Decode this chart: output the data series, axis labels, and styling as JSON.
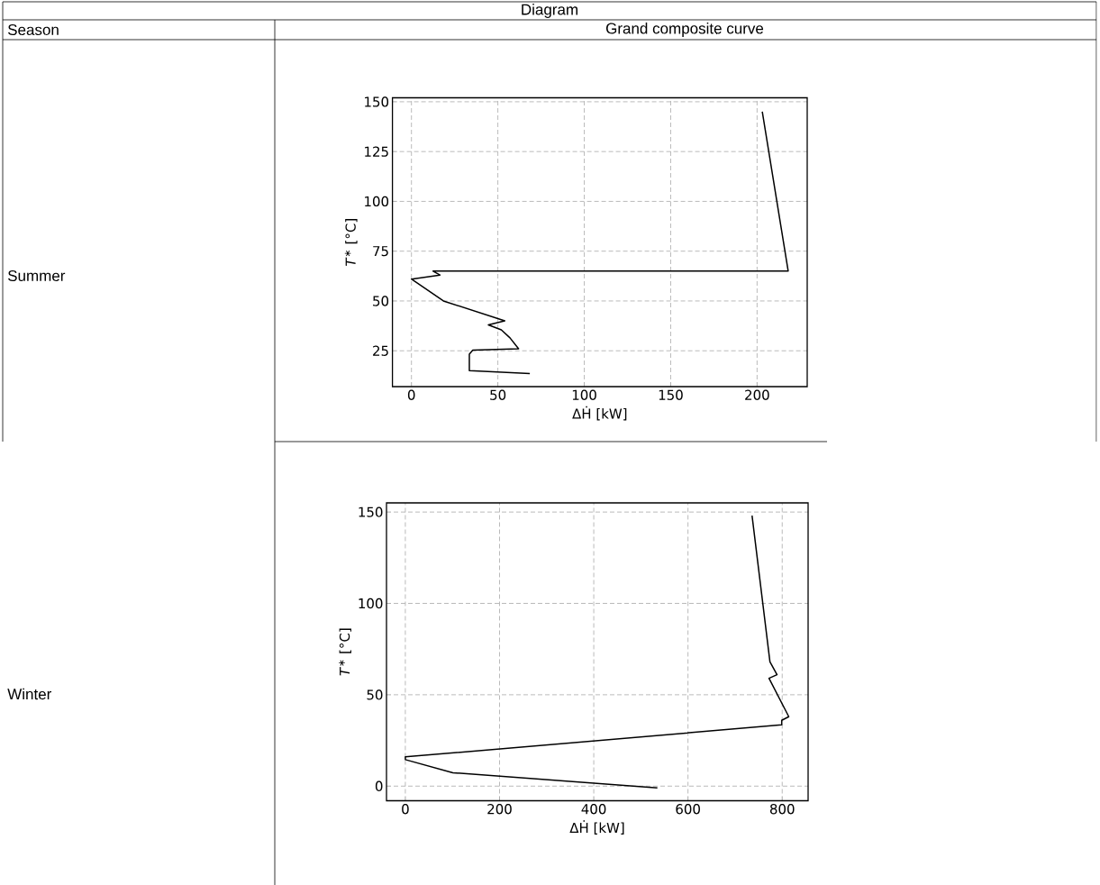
{
  "chart_data": [
    {
      "type": "line",
      "xlabel": "ΔḢ [kW]",
      "ylabel": "*T*$^{∗}$ [°C]",
      "annotations": [
        "Diagram",
        "Season",
        "Grand composite curve",
        "Summer"
      ],
      "xlim": [
        -11,
        229
      ],
      "ylim": [
        7,
        152
      ],
      "xticks": [
        0,
        50,
        100,
        150,
        200
      ],
      "yticks": [
        25,
        50,
        75,
        100,
        125,
        150
      ],
      "grid": true,
      "marker": "none",
      "line_style": "solid",
      "series": [
        {
          "color": "#000000",
          "x": [
            203,
            218,
            12.5,
            16.5,
            0,
            18.5,
            54,
            44.5,
            52,
            57,
            62,
            35.5,
            33.5,
            33.5,
            68.5
          ],
          "values": [
            145,
            65,
            65,
            63,
            61,
            50,
            40,
            38,
            35.5,
            31.5,
            26,
            25.3,
            23.3,
            15,
            13.6
          ]
        }
      ]
    },
    {
      "type": "line",
      "xlabel": "ΔḢ [kW]",
      "ylabel": "*T*$^{∗}$ [°C]",
      "annotations": [
        "Winter"
      ],
      "xlim": [
        -40,
        855
      ],
      "ylim": [
        -8,
        155
      ],
      "xticks": [
        0,
        200,
        400,
        600,
        800
      ],
      "yticks": [
        0,
        50,
        100,
        150
      ],
      "grid": true,
      "marker": "none",
      "line_style": "solid",
      "series": [
        {
          "color": "#000000",
          "x": [
            736,
            774,
            789,
            772,
            814,
            799,
            799,
            0,
            0,
            101,
            535
          ],
          "values": [
            148,
            68,
            61,
            59,
            38,
            36,
            33.5,
            16,
            14.5,
            7.3,
            -1
          ]
        }
      ]
    }
  ]
}
